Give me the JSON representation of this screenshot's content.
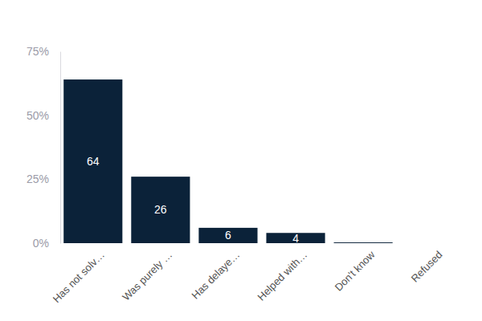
{
  "chart_data": {
    "type": "bar",
    "categories": [
      "Has not solv…",
      "Was purely …",
      "Has delaye…",
      "Helped with…",
      "Don't know",
      "Refused"
    ],
    "values": [
      64,
      26,
      6,
      4,
      0.3,
      0
    ],
    "value_labels": [
      "64",
      "26",
      "6",
      "4",
      null,
      null
    ],
    "data_labels": true,
    "color": "#0b2239",
    "ylim": [
      0,
      75
    ],
    "yticks": [
      {
        "value": 0,
        "label": "0%"
      },
      {
        "value": 25,
        "label": "25%"
      },
      {
        "value": 50,
        "label": "50%"
      },
      {
        "value": 75,
        "label": "75%"
      }
    ],
    "grid": false
  }
}
